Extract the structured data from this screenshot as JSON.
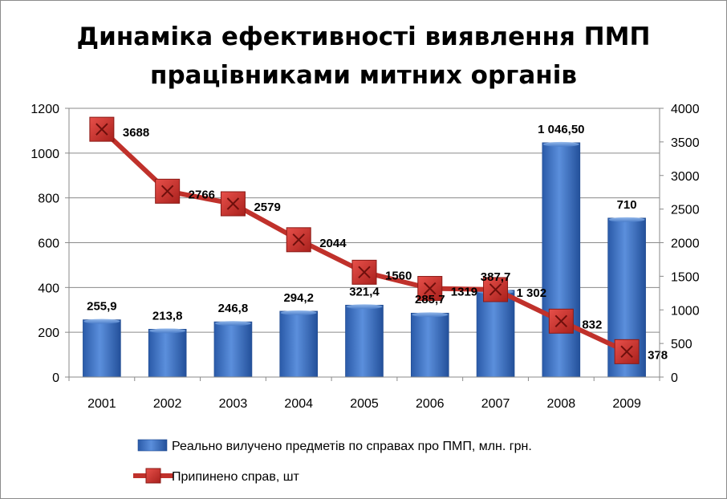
{
  "chart_data": {
    "type": "bar",
    "title_line1": "Динаміка ефективності виявлення ПМП",
    "title_line2": "працівниками митних органів",
    "categories": [
      "2001",
      "2002",
      "2003",
      "2004",
      "2005",
      "2006",
      "2007",
      "2008",
      "2009"
    ],
    "series": [
      {
        "name": "Реально вилучено предметів по справах про ПМП, млн. грн.",
        "type": "bar",
        "axis": "left",
        "values": [
          255.9,
          213.8,
          246.8,
          294.2,
          321.4,
          285.7,
          387.7,
          1046.5,
          710
        ],
        "labels": [
          "255,9",
          "213,8",
          "246,8",
          "294,2",
          "321,4",
          "285,7",
          "387,7",
          "1 046,50",
          "710"
        ],
        "color": "#3b6fc2"
      },
      {
        "name": "Припинено справ, шт",
        "type": "line",
        "axis": "right",
        "values": [
          3688,
          2766,
          2579,
          2044,
          1560,
          1319,
          1302,
          832,
          378
        ],
        "labels": [
          "3688",
          "2766",
          "2579",
          "2044",
          "1560",
          "1319",
          "1 302",
          "832",
          "378"
        ],
        "color": "#c0312b"
      }
    ],
    "y_left": {
      "min": 0,
      "max": 1200,
      "ticks": [
        "0",
        "200",
        "400",
        "600",
        "800",
        "1000",
        "1200"
      ]
    },
    "y_right": {
      "min": 0,
      "max": 4000,
      "ticks": [
        "0",
        "500",
        "1000",
        "1500",
        "2000",
        "2500",
        "3000",
        "3500",
        "4000"
      ]
    },
    "grid": true,
    "legend_position": "bottom"
  }
}
